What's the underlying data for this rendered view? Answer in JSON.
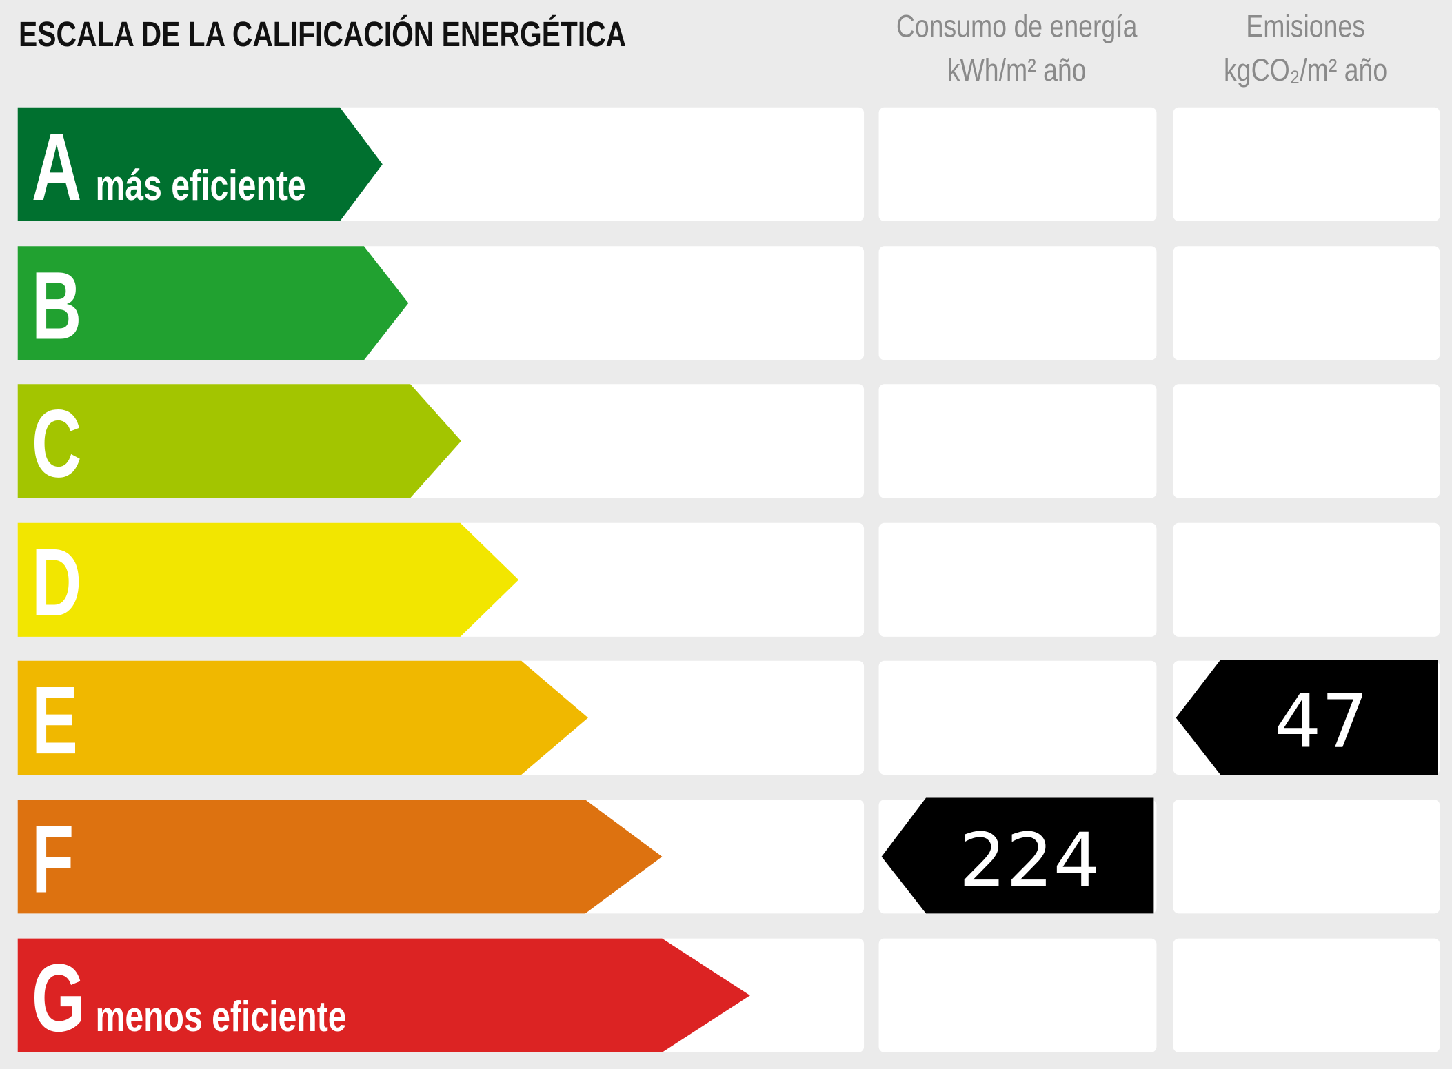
{
  "title": "ESCALA DE LA CALIFICACIÓN ENERGÉTICA",
  "energy_header": [
    "Consumo de energía",
    "kWh/m² año"
  ],
  "emissions_header": [
    "Emisiones",
    "kgCO₂/m² año"
  ],
  "rows": [
    {
      "letter": "A",
      "label": "más eficiente",
      "color": "#00702f"
    },
    {
      "letter": "B",
      "color": "#21a130"
    },
    {
      "letter": "C",
      "color": "#a3c500"
    },
    {
      "letter": "D",
      "color": "#f2e600"
    },
    {
      "letter": "E",
      "color": "#f0b800",
      "emissions": 47
    },
    {
      "letter": "F",
      "color": "#dd7210",
      "energy": 224
    },
    {
      "letter": "G",
      "label": "menos eficiente",
      "color": "#dc2323"
    }
  ]
}
